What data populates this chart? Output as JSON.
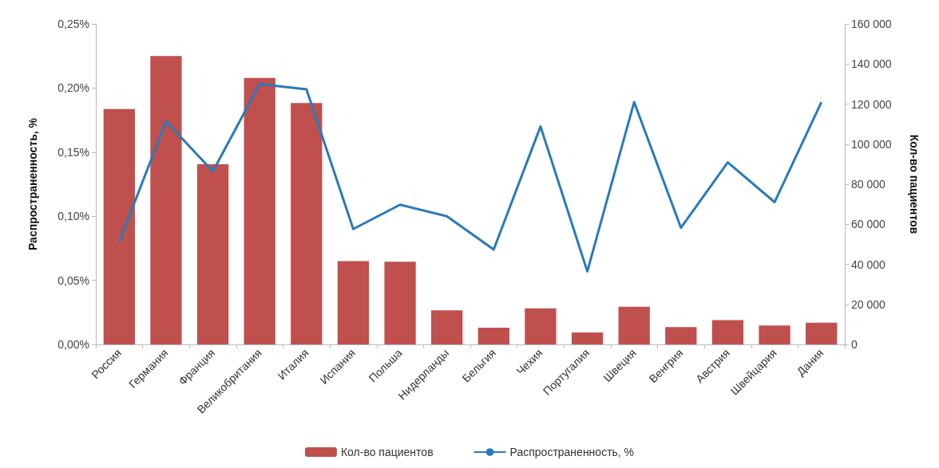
{
  "chart_data": {
    "type": "bar",
    "ylabel": "Распространенность, %",
    "y2label": "Кол-во пациентов",
    "categories": [
      "Россия",
      "Германия",
      "Франция",
      "Великобритания",
      "Италия",
      "Испания",
      "Польша",
      "Нидерланды",
      "Бельгия",
      "Чехия",
      "Португалия",
      "Швеция",
      "Венгрия",
      "Австрия",
      "Швейцария",
      "Дания"
    ],
    "series": [
      {
        "name": "Кол-во пациентов",
        "axis": "y2",
        "color": "#c0504d",
        "values": [
          117500,
          144000,
          90000,
          133000,
          120500,
          41600,
          41300,
          17000,
          8400,
          18000,
          6000,
          18800,
          8700,
          12100,
          9500,
          10800
        ]
      },
      {
        "name": "Распространенность, %",
        "type": "line",
        "color": "#2a7ab9",
        "values": [
          0.08,
          0.174,
          0.135,
          0.203,
          0.199,
          0.09,
          0.109,
          0.1,
          0.074,
          0.17,
          0.057,
          0.189,
          0.091,
          0.142,
          0.111,
          0.189
        ]
      }
    ],
    "ylim": [
      0,
      0.25
    ],
    "yticks": [
      {
        "value": 0,
        "label": "0,00%"
      },
      {
        "value": 0.05,
        "label": "0,05%"
      },
      {
        "value": 0.1,
        "label": "0,10%"
      },
      {
        "value": 0.15,
        "label": "0,15%"
      },
      {
        "value": 0.2,
        "label": "0,20%"
      },
      {
        "value": 0.25,
        "label": "0,25%"
      }
    ],
    "y2lim": [
      0,
      160000
    ],
    "y2ticks": [
      {
        "value": 0,
        "label": "0"
      },
      {
        "value": 20000,
        "label": "20 000"
      },
      {
        "value": 40000,
        "label": "40 000"
      },
      {
        "value": 60000,
        "label": "60 000"
      },
      {
        "value": 80000,
        "label": "80 000"
      },
      {
        "value": 100000,
        "label": "100 000"
      },
      {
        "value": 120000,
        "label": "120 000"
      },
      {
        "value": 140000,
        "label": "140 000"
      },
      {
        "value": 160000,
        "label": "160 000"
      }
    ],
    "grid": false,
    "legend": "bottom",
    "marker": "none",
    "line_style": "solid"
  }
}
